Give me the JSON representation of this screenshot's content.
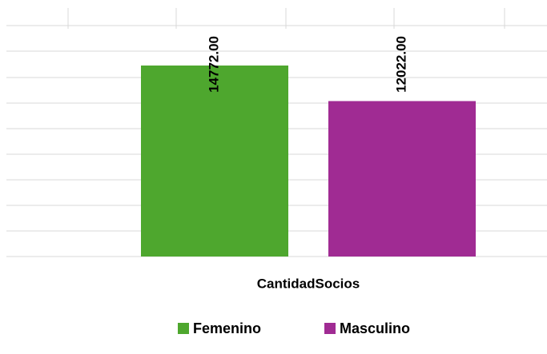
{
  "chart_data": {
    "type": "bar",
    "categories": [
      "CantidadSocios"
    ],
    "series": [
      {
        "name": "Femenino",
        "color": "#4ea72e",
        "values": [
          14772
        ],
        "value_labels": [
          "14772.00"
        ]
      },
      {
        "name": "Masculino",
        "color": "#a02b93",
        "values": [
          12022
        ],
        "value_labels": [
          "12022.00"
        ]
      }
    ],
    "ylim": [
      0,
      20000
    ],
    "legend": "bottom"
  }
}
